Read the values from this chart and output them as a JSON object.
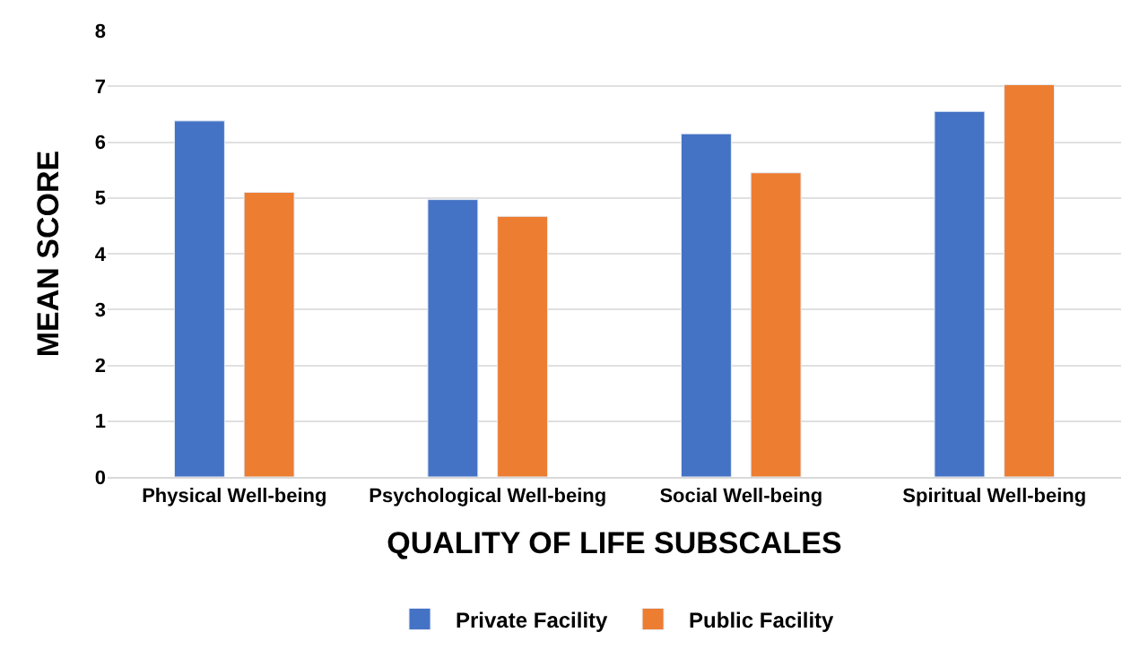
{
  "chart_data": {
    "type": "bar",
    "xlabel": "QUALITY OF LIFE SUBSCALES",
    "ylabel": "MEAN SCORE",
    "categories": [
      "Physical Well-being",
      "Psychological Well-being",
      "Social Well-being",
      "Spiritual Well-being"
    ],
    "series": [
      {
        "name": "Private Facility",
        "color": "#4472c4",
        "values": [
          6.38,
          4.97,
          6.15,
          6.55
        ]
      },
      {
        "name": "Public Facility",
        "color": "#ed7d31",
        "values": [
          5.1,
          4.67,
          5.45,
          7.03
        ]
      }
    ],
    "ylim": [
      0,
      8
    ],
    "yticks": [
      0,
      1,
      2,
      3,
      4,
      5,
      6,
      7,
      8
    ],
    "grid": "y",
    "legend": "bottom"
  }
}
